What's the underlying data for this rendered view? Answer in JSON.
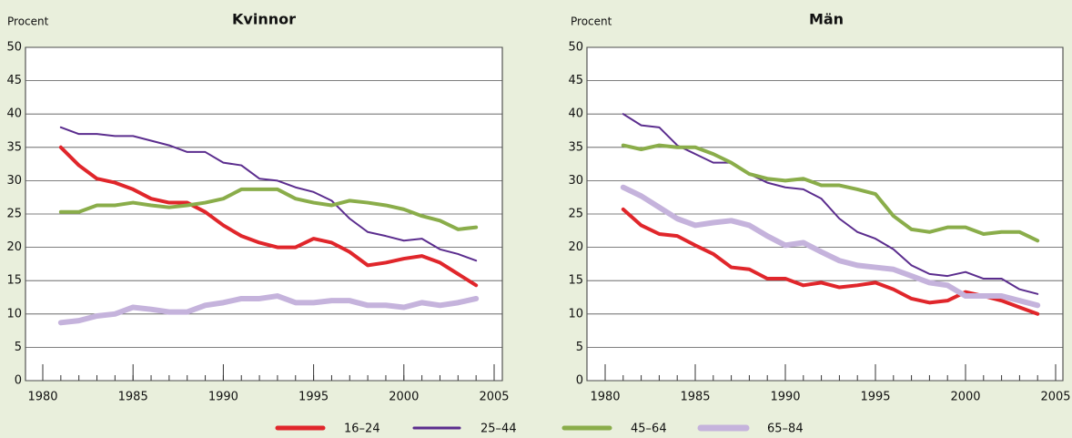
{
  "chart_data": [
    {
      "type": "line",
      "title": "Kvinnor",
      "y_label": "Procent",
      "x": [
        1981,
        1982,
        1983,
        1984,
        1985,
        1986,
        1987,
        1988,
        1989,
        1990,
        1991,
        1992,
        1993,
        1994,
        1995,
        1996,
        1997,
        1998,
        1999,
        2000,
        2001,
        2002,
        2003,
        2004
      ],
      "xlim": [
        1980,
        2005
      ],
      "xticks": [
        1980,
        1985,
        1990,
        1995,
        2000,
        2005
      ],
      "ylim": [
        0,
        50
      ],
      "yticks": [
        0,
        5,
        10,
        15,
        20,
        25,
        30,
        35,
        40,
        45,
        50
      ],
      "grid": true,
      "series": [
        {
          "name": "16–24",
          "color": "#e0262b",
          "values": [
            35,
            32.3,
            30.3,
            29.7,
            28.7,
            27.3,
            26.7,
            26.7,
            25.3,
            23.3,
            21.7,
            20.7,
            20,
            20,
            21.3,
            20.7,
            19.3,
            17.3,
            17.7,
            18.3,
            18.7,
            17.7,
            16,
            14.3
          ]
        },
        {
          "name": "25–44",
          "color": "#5b2d8e",
          "values": [
            38,
            37,
            37,
            36.7,
            36.7,
            36,
            35.3,
            34.3,
            34.3,
            32.7,
            32.3,
            30.3,
            30,
            29,
            28.3,
            27,
            24.3,
            22.3,
            21.7,
            21,
            21.3,
            19.7,
            19,
            18
          ]
        },
        {
          "name": "45–64",
          "color": "#8aad4a",
          "values": [
            25.3,
            25.3,
            26.3,
            26.3,
            26.7,
            26.3,
            26,
            26.3,
            26.7,
            27.3,
            28.7,
            28.7,
            28.7,
            27.3,
            26.7,
            26.3,
            27,
            26.7,
            26.3,
            25.7,
            24.7,
            24,
            22.7,
            23
          ]
        },
        {
          "name": "65–84",
          "color": "#c5b3dc",
          "values": [
            8.7,
            9,
            9.7,
            10,
            11,
            10.7,
            10.3,
            10.3,
            11.3,
            11.7,
            12.3,
            12.3,
            12.7,
            11.7,
            11.7,
            12,
            12,
            11.3,
            11.3,
            11,
            11.7,
            11.3,
            11.7,
            12.3
          ]
        }
      ]
    },
    {
      "type": "line",
      "title": "Män",
      "y_label": "Procent",
      "x": [
        1981,
        1982,
        1983,
        1984,
        1985,
        1986,
        1987,
        1988,
        1989,
        1990,
        1991,
        1992,
        1993,
        1994,
        1995,
        1996,
        1997,
        1998,
        1999,
        2000,
        2001,
        2002,
        2003,
        2004
      ],
      "xlim": [
        1980,
        2005
      ],
      "xticks": [
        1980,
        1985,
        1990,
        1995,
        2000,
        2005
      ],
      "ylim": [
        0,
        50
      ],
      "yticks": [
        0,
        5,
        10,
        15,
        20,
        25,
        30,
        35,
        40,
        45,
        50
      ],
      "grid": true,
      "series": [
        {
          "color": "#e0262b",
          "values": [
            25.7,
            23.3,
            22,
            21.7,
            20.3,
            19,
            17,
            16.7,
            15.3,
            15.3,
            14.3,
            14.7,
            14,
            14.3,
            14.7,
            13.7,
            12.3,
            11.7,
            12,
            13.3,
            12.7,
            12,
            11,
            10
          ]
        },
        {
          "color": "#5b2d8e",
          "values": [
            40,
            38.3,
            38,
            35.3,
            34,
            32.7,
            32.7,
            31,
            29.7,
            29,
            28.7,
            27.3,
            24.3,
            22.3,
            21.3,
            19.7,
            17.3,
            16,
            15.7,
            16.3,
            15.3,
            15.3,
            13.7,
            13
          ]
        },
        {
          "color": "#8aad4a",
          "values": [
            35.3,
            34.7,
            35.3,
            35,
            35,
            34,
            32.7,
            31,
            30.3,
            30,
            30.3,
            29.3,
            29.3,
            28.7,
            28,
            24.7,
            22.7,
            22.3,
            23,
            23,
            22,
            22.3,
            22.3,
            21
          ]
        },
        {
          "color": "#c5b3dc",
          "values": [
            29,
            27.7,
            26,
            24.3,
            23.3,
            23.7,
            24,
            23.3,
            21.7,
            20.3,
            20.7,
            19.3,
            18,
            17.3,
            17,
            16.7,
            15.7,
            14.7,
            14.3,
            12.7,
            12.7,
            12.7,
            12,
            11.3
          ]
        }
      ]
    }
  ]
}
